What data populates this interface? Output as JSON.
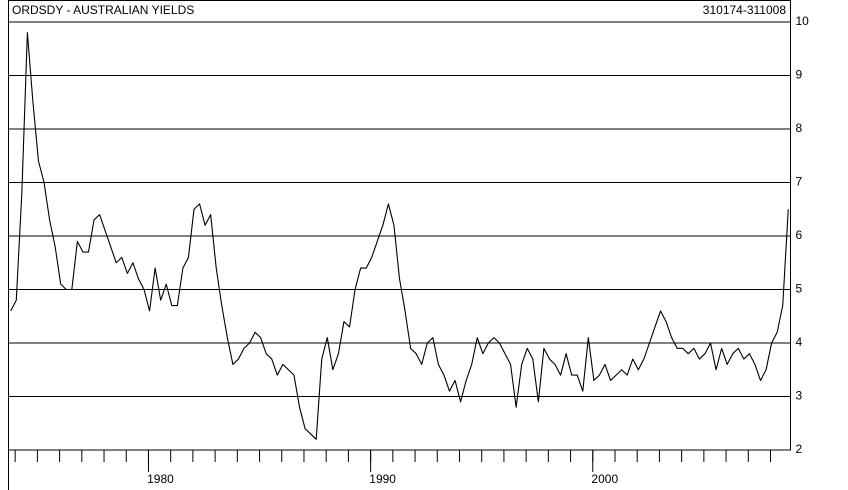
{
  "chart_data": {
    "type": "line",
    "title": "ORDSDY - AUSTRALIAN YIELDS",
    "subtitle": "310174-311008",
    "color": "#000000",
    "xlim": [
      1973.7,
      2008.9
    ],
    "xticks": [
      1980,
      1990,
      2000
    ],
    "ylim": [
      2,
      10
    ],
    "yticks": [
      2,
      3,
      4,
      5,
      6,
      7,
      8,
      9,
      10
    ],
    "grid": true,
    "x": [
      1973.8,
      1974.05,
      1974.3,
      1974.55,
      1974.8,
      1975.05,
      1975.3,
      1975.55,
      1975.8,
      1976.05,
      1976.3,
      1976.55,
      1976.8,
      1977.05,
      1977.3,
      1977.55,
      1977.8,
      1978.05,
      1978.3,
      1978.55,
      1978.8,
      1979.05,
      1979.3,
      1979.55,
      1979.8,
      1980.05,
      1980.3,
      1980.55,
      1980.8,
      1981.05,
      1981.3,
      1981.55,
      1981.8,
      1982.05,
      1982.3,
      1982.55,
      1982.8,
      1983.05,
      1983.3,
      1983.55,
      1983.8,
      1984.05,
      1984.3,
      1984.55,
      1984.8,
      1985.05,
      1985.3,
      1985.55,
      1985.8,
      1986.05,
      1986.3,
      1986.55,
      1986.8,
      1987.05,
      1987.3,
      1987.55,
      1987.8,
      1988.05,
      1988.3,
      1988.55,
      1988.8,
      1989.05,
      1989.3,
      1989.55,
      1989.8,
      1990.05,
      1990.3,
      1990.55,
      1990.8,
      1991.05,
      1991.3,
      1991.55,
      1991.8,
      1992.05,
      1992.3,
      1992.55,
      1992.8,
      1993.05,
      1993.3,
      1993.55,
      1993.8,
      1994.05,
      1994.3,
      1994.55,
      1994.8,
      1995.05,
      1995.3,
      1995.55,
      1995.8,
      1996.05,
      1996.3,
      1996.55,
      1996.8,
      1997.05,
      1997.3,
      1997.55,
      1997.8,
      1998.05,
      1998.3,
      1998.55,
      1998.8,
      1999.05,
      1999.3,
      1999.55,
      1999.8,
      2000.05,
      2000.3,
      2000.55,
      2000.8,
      2001.05,
      2001.3,
      2001.55,
      2001.8,
      2002.05,
      2002.3,
      2002.55,
      2002.8,
      2003.05,
      2003.3,
      2003.55,
      2003.8,
      2004.05,
      2004.3,
      2004.55,
      2004.8,
      2005.05,
      2005.3,
      2005.55,
      2005.8,
      2006.05,
      2006.3,
      2006.55,
      2006.8,
      2007.05,
      2007.3,
      2007.55,
      2007.8,
      2008.05,
      2008.3,
      2008.55,
      2008.8
    ],
    "series": [
      {
        "name": "ORDSDY",
        "color": "#000000",
        "values": [
          4.6,
          4.8,
          6.8,
          9.8,
          8.5,
          7.4,
          7.0,
          6.3,
          5.8,
          5.1,
          5.0,
          5.0,
          5.9,
          5.7,
          5.7,
          6.3,
          6.4,
          6.1,
          5.8,
          5.5,
          5.6,
          5.3,
          5.5,
          5.2,
          5.0,
          4.6,
          5.4,
          4.8,
          5.1,
          4.7,
          4.7,
          5.4,
          5.6,
          6.5,
          6.6,
          6.2,
          6.4,
          5.4,
          4.7,
          4.1,
          3.6,
          3.7,
          3.9,
          4.0,
          4.2,
          4.1,
          3.8,
          3.7,
          3.4,
          3.6,
          3.5,
          3.4,
          2.8,
          2.4,
          2.3,
          2.2,
          3.7,
          4.1,
          3.5,
          3.8,
          4.4,
          4.3,
          5.0,
          5.4,
          5.4,
          5.6,
          5.9,
          6.2,
          6.6,
          6.2,
          5.2,
          4.6,
          3.9,
          3.8,
          3.6,
          4.0,
          4.1,
          3.6,
          3.4,
          3.1,
          3.3,
          2.9,
          3.3,
          3.6,
          4.1,
          3.8,
          4.0,
          4.1,
          4.0,
          3.8,
          3.6,
          2.8,
          3.6,
          3.9,
          3.7,
          2.9,
          3.9,
          3.7,
          3.6,
          3.4,
          3.8,
          3.4,
          3.4,
          3.1,
          4.1,
          3.3,
          3.4,
          3.6,
          3.3,
          3.4,
          3.5,
          3.4,
          3.7,
          3.5,
          3.7,
          4.0,
          4.3,
          4.6,
          4.4,
          4.1,
          3.9,
          3.9,
          3.8,
          3.9,
          3.7,
          3.8,
          4.0,
          3.5,
          3.9,
          3.6,
          3.8,
          3.9,
          3.7,
          3.8,
          3.6,
          3.3,
          3.5,
          4.0,
          4.2,
          4.7,
          6.5
        ]
      }
    ]
  }
}
